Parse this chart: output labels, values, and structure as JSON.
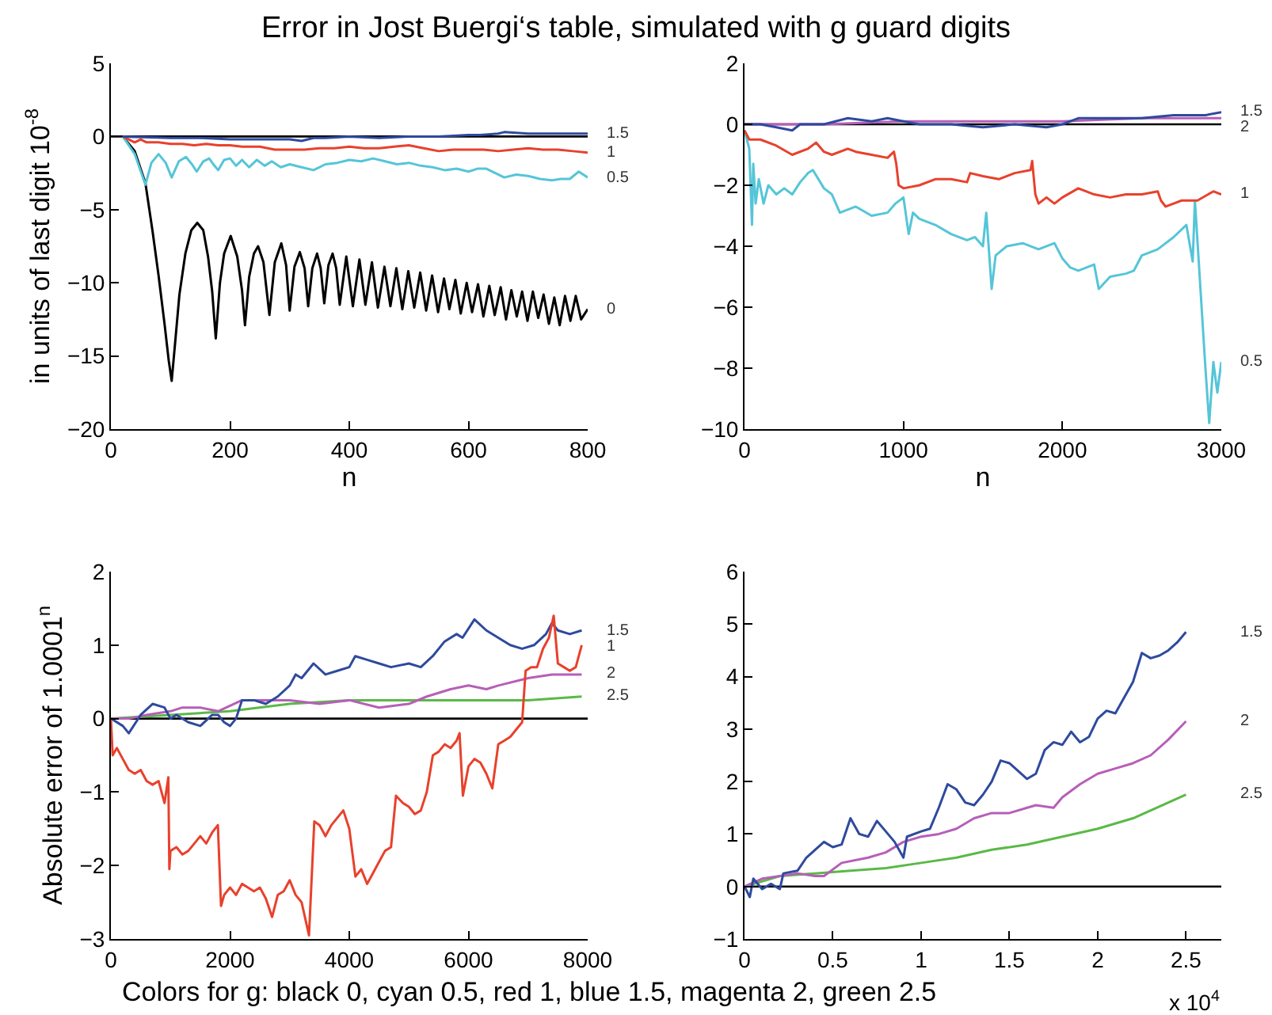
{
  "chart_data": [
    {
      "type": "line",
      "title": "Error in Jost Buergi‘s table, simulated with g guard digits",
      "xlabel": "n",
      "ylabel": "in units of last digit 10$^{-8}$",
      "xlim": [
        0,
        800
      ],
      "ylim": [
        -20,
        5
      ],
      "xticks": [
        0,
        200,
        400,
        600,
        800
      ],
      "yticks": [
        -20,
        -15,
        -10,
        -5,
        0,
        5
      ],
      "grid": false,
      "legend": false,
      "ref_lines": [
        {
          "axis": "y",
          "value": 0,
          "color": "#000000"
        }
      ],
      "series": [
        {
          "name": "0",
          "color": "#000000",
          "x": [
            20,
            40,
            58,
            70,
            80,
            90,
            97,
            102,
            108,
            115,
            125,
            135,
            145,
            155,
            163,
            170,
            176,
            183,
            190,
            201,
            212,
            220,
            225,
            232,
            240,
            247,
            256,
            266,
            275,
            286,
            294,
            300,
            308,
            317,
            325,
            331,
            338,
            346,
            352,
            358,
            365,
            372,
            378,
            384,
            395,
            406,
            417,
            427,
            438,
            448,
            459,
            469,
            479,
            489,
            499,
            509,
            519,
            529,
            539,
            549,
            559,
            568,
            578,
            587,
            597,
            606,
            616,
            625,
            635,
            644,
            654,
            663,
            672,
            681,
            690,
            699,
            708,
            717,
            726,
            735,
            744,
            753,
            762,
            771,
            780,
            789,
            800
          ],
          "values": [
            0,
            -1.0,
            -3.2,
            -6.5,
            -9.5,
            -12.8,
            -15.3,
            -16.7,
            -14.0,
            -10.8,
            -8.0,
            -6.4,
            -5.9,
            -6.4,
            -8.2,
            -10.6,
            -13.8,
            -10.0,
            -8.0,
            -6.8,
            -8.2,
            -10.5,
            -12.9,
            -9.6,
            -8.0,
            -7.5,
            -8.6,
            -12.2,
            -8.6,
            -7.3,
            -8.8,
            -11.9,
            -8.9,
            -7.9,
            -9.0,
            -11.6,
            -9.0,
            -8.0,
            -9.0,
            -11.4,
            -8.8,
            -8.0,
            -9.0,
            -11.5,
            -8.2,
            -11.6,
            -8.4,
            -11.5,
            -8.6,
            -11.7,
            -8.9,
            -11.6,
            -9.0,
            -11.8,
            -9.2,
            -11.7,
            -9.3,
            -11.9,
            -9.5,
            -12.0,
            -9.7,
            -11.8,
            -9.8,
            -12.1,
            -10.0,
            -12.0,
            -10.1,
            -12.3,
            -10.2,
            -12.2,
            -10.3,
            -12.5,
            -10.5,
            -12.3,
            -10.6,
            -12.6,
            -10.6,
            -12.4,
            -10.8,
            -12.8,
            -11.0,
            -12.9,
            -10.9,
            -12.6,
            -10.9,
            -12.5,
            -11.8
          ]
        },
        {
          "name": "0.5",
          "color": "#55c5d8",
          "x": [
            20,
            40,
            58,
            68,
            80,
            92,
            102,
            114,
            126,
            136,
            144,
            155,
            165,
            172,
            180,
            190,
            200,
            210,
            220,
            232,
            245,
            258,
            270,
            285,
            300,
            320,
            340,
            360,
            380,
            400,
            420,
            440,
            460,
            480,
            500,
            520,
            540,
            560,
            580,
            600,
            615,
            630,
            645,
            660,
            680,
            700,
            720,
            740,
            755,
            770,
            785,
            800
          ],
          "values": [
            0,
            -1.2,
            -3.3,
            -1.8,
            -1.2,
            -1.8,
            -2.8,
            -1.7,
            -1.4,
            -1.9,
            -2.4,
            -1.7,
            -1.5,
            -1.9,
            -2.3,
            -1.6,
            -1.5,
            -2.0,
            -1.6,
            -2.1,
            -1.6,
            -2.0,
            -1.7,
            -2.1,
            -1.9,
            -2.1,
            -2.3,
            -1.9,
            -1.8,
            -1.6,
            -1.7,
            -1.5,
            -1.7,
            -1.9,
            -1.8,
            -2.0,
            -2.1,
            -2.3,
            -2.2,
            -2.4,
            -2.2,
            -2.2,
            -2.5,
            -2.8,
            -2.6,
            -2.7,
            -2.9,
            -3.0,
            -2.9,
            -2.9,
            -2.4,
            -2.8
          ]
        },
        {
          "name": "1",
          "color": "#e8412c",
          "x": [
            20,
            30,
            40,
            50,
            60,
            80,
            100,
            120,
            140,
            160,
            180,
            200,
            220,
            250,
            275,
            300,
            325,
            350,
            375,
            400,
            425,
            450,
            475,
            500,
            525,
            550,
            575,
            600,
            625,
            650,
            675,
            700,
            725,
            750,
            775,
            800
          ],
          "values": [
            0,
            -0.2,
            -0.4,
            -0.2,
            -0.4,
            -0.4,
            -0.5,
            -0.5,
            -0.6,
            -0.5,
            -0.6,
            -0.6,
            -0.7,
            -0.7,
            -0.9,
            -0.9,
            -0.9,
            -0.8,
            -0.8,
            -0.7,
            -0.8,
            -0.8,
            -0.7,
            -0.6,
            -0.8,
            -1.0,
            -0.9,
            -0.9,
            -0.9,
            -1.0,
            -0.9,
            -0.8,
            -0.9,
            -0.9,
            -1.0,
            -1.1
          ]
        },
        {
          "name": "1.5",
          "color": "#2e4a9e",
          "x": [
            20,
            100,
            150,
            200,
            250,
            300,
            320,
            340,
            360,
            400,
            450,
            500,
            550,
            600,
            620,
            650,
            660,
            700,
            750,
            800
          ],
          "values": [
            0,
            -0.1,
            -0.1,
            -0.2,
            -0.2,
            -0.2,
            -0.3,
            -0.1,
            -0.1,
            0,
            -0.1,
            0,
            0,
            0.1,
            0.1,
            0.2,
            0.3,
            0.2,
            0.2,
            0.2
          ]
        }
      ]
    },
    {
      "type": "line",
      "xlabel": "n",
      "xlim": [
        0,
        3000
      ],
      "ylim": [
        -10,
        2
      ],
      "xticks": [
        0,
        1000,
        2000,
        3000
      ],
      "yticks": [
        -10,
        -8,
        -6,
        -4,
        -2,
        0,
        2
      ],
      "grid": false,
      "legend": false,
      "ref_lines": [
        {
          "axis": "y",
          "value": 0,
          "color": "#000000"
        }
      ],
      "series": [
        {
          "name": "0.5",
          "color": "#55c5d8",
          "x": [
            0,
            30,
            47,
            55,
            70,
            90,
            120,
            150,
            200,
            250,
            300,
            350,
            400,
            430,
            500,
            550,
            600,
            700,
            800,
            900,
            950,
            1000,
            1033,
            1060,
            1100,
            1200,
            1300,
            1400,
            1450,
            1500,
            1521,
            1555,
            1580,
            1650,
            1750,
            1850,
            1950,
            2000,
            2050,
            2100,
            2200,
            2229,
            2300,
            2400,
            2450,
            2500,
            2600,
            2700,
            2780,
            2820,
            2834,
            2900,
            2924,
            2950,
            2975,
            3000
          ],
          "values": [
            -0.2,
            -0.8,
            -3.3,
            -1.3,
            -2.6,
            -1.8,
            -2.6,
            -2.0,
            -2.3,
            -2.1,
            -2.3,
            -1.9,
            -1.6,
            -1.5,
            -2.1,
            -2.3,
            -2.9,
            -2.7,
            -3.0,
            -2.9,
            -2.6,
            -2.4,
            -3.6,
            -2.9,
            -3.1,
            -3.3,
            -3.6,
            -3.8,
            -3.7,
            -4.0,
            -2.9,
            -5.4,
            -4.3,
            -4.0,
            -3.9,
            -4.1,
            -3.9,
            -4.4,
            -4.7,
            -4.8,
            -4.6,
            -5.4,
            -5.0,
            -4.9,
            -4.8,
            -4.3,
            -4.1,
            -3.7,
            -3.3,
            -4.5,
            -2.5,
            -8.0,
            -9.8,
            -7.8,
            -8.8,
            -7.8
          ]
        },
        {
          "name": "1",
          "color": "#e8412c",
          "x": [
            0,
            30,
            100,
            200,
            300,
            400,
            450,
            500,
            550,
            650,
            700,
            800,
            900,
            940,
            955,
            970,
            1000,
            1100,
            1200,
            1300,
            1400,
            1420,
            1500,
            1600,
            1700,
            1800,
            1810,
            1830,
            1850,
            1900,
            1950,
            2000,
            2100,
            2200,
            2300,
            2400,
            2500,
            2600,
            2620,
            2650,
            2750,
            2850,
            2950,
            3000
          ],
          "values": [
            -0.2,
            -0.5,
            -0.5,
            -0.7,
            -1.0,
            -0.8,
            -0.6,
            -0.9,
            -1.0,
            -0.8,
            -0.9,
            -1.0,
            -1.1,
            -0.9,
            -1.3,
            -2.0,
            -2.1,
            -2.0,
            -1.8,
            -1.8,
            -1.9,
            -1.6,
            -1.7,
            -1.8,
            -1.6,
            -1.5,
            -1.2,
            -2.3,
            -2.6,
            -2.4,
            -2.6,
            -2.4,
            -2.1,
            -2.3,
            -2.4,
            -2.3,
            -2.3,
            -2.2,
            -2.5,
            -2.7,
            -2.5,
            -2.5,
            -2.2,
            -2.3
          ]
        },
        {
          "name": "2",
          "color": "#b65fb8",
          "x": [
            0,
            500,
            1000,
            1500,
            2000,
            2500,
            3000
          ],
          "values": [
            0,
            0,
            0.1,
            0.1,
            0.1,
            0.2,
            0.2
          ]
        },
        {
          "name": "1.5",
          "color": "#2e4a9e",
          "x": [
            0,
            100,
            200,
            300,
            350,
            500,
            650,
            800,
            900,
            1000,
            1100,
            1300,
            1500,
            1700,
            1900,
            2000,
            2100,
            2300,
            2500,
            2700,
            2800,
            2900,
            3000
          ],
          "values": [
            0,
            0,
            -0.1,
            -0.2,
            0,
            0,
            0.2,
            0.1,
            0.2,
            0.1,
            0,
            0,
            -0.1,
            0,
            -0.1,
            0,
            0.2,
            0.2,
            0.2,
            0.3,
            0.3,
            0.3,
            0.4
          ]
        }
      ]
    },
    {
      "type": "line",
      "ylabel": "Absolute error of 1.0001$^{n}$",
      "annotations": [
        "Colors for g: black 0, cyan 0.5, red 1, blue 1.5, magenta 2, green 2.5"
      ],
      "xlim": [
        0,
        8000
      ],
      "ylim": [
        -3,
        2
      ],
      "xticks": [
        0,
        2000,
        4000,
        6000,
        8000
      ],
      "yticks": [
        -3,
        -2,
        -1,
        0,
        1,
        2
      ],
      "grid": false,
      "legend": false,
      "ref_lines": [
        {
          "axis": "y",
          "value": 0,
          "color": "#000000"
        }
      ],
      "series": [
        {
          "name": "2.5",
          "color": "#5ab947",
          "x": [
            0,
            1000,
            2000,
            3000,
            4000,
            5000,
            6000,
            7000,
            7900
          ],
          "values": [
            0,
            0.05,
            0.1,
            0.2,
            0.25,
            0.25,
            0.25,
            0.25,
            0.3
          ]
        },
        {
          "name": "2",
          "color": "#b65fb8",
          "x": [
            0,
            300,
            600,
            1000,
            1200,
            1500,
            1800,
            2200,
            2500,
            3000,
            3500,
            4000,
            4500,
            5000,
            5300,
            5700,
            6000,
            6300,
            6500,
            7000,
            7400,
            7900
          ],
          "values": [
            0,
            0,
            0.05,
            0.1,
            0.15,
            0.15,
            0.1,
            0.25,
            0.25,
            0.25,
            0.2,
            0.25,
            0.15,
            0.2,
            0.3,
            0.4,
            0.45,
            0.4,
            0.45,
            0.55,
            0.6,
            0.6
          ]
        },
        {
          "name": "1.5",
          "color": "#2e4a9e",
          "x": [
            0,
            200,
            300,
            500,
            700,
            900,
            1000,
            1100,
            1300,
            1500,
            1700,
            1800,
            1900,
            2000,
            2100,
            2200,
            2400,
            2600,
            2800,
            3000,
            3100,
            3200,
            3400,
            3600,
            3800,
            4000,
            4100,
            4300,
            4500,
            4700,
            5000,
            5200,
            5400,
            5600,
            5800,
            5900,
            6100,
            6300,
            6500,
            6700,
            6900,
            7100,
            7300,
            7400,
            7500,
            7700,
            7900
          ],
          "values": [
            0,
            -0.1,
            -0.2,
            0.05,
            0.2,
            0.15,
            0,
            0.05,
            -0.05,
            -0.1,
            0.05,
            0.05,
            -0.05,
            -0.1,
            0,
            0.25,
            0.25,
            0.2,
            0.3,
            0.45,
            0.6,
            0.55,
            0.75,
            0.6,
            0.65,
            0.7,
            0.85,
            0.8,
            0.75,
            0.7,
            0.75,
            0.7,
            0.85,
            1.05,
            1.15,
            1.1,
            1.35,
            1.2,
            1.1,
            1.0,
            0.95,
            1.0,
            1.15,
            1.3,
            1.2,
            1.15,
            1.2
          ]
        },
        {
          "name": "1",
          "color": "#e8412c",
          "x": [
            0,
            30,
            100,
            200,
            300,
            400,
            500,
            600,
            700,
            800,
            900,
            964,
            981,
            1000,
            1100,
            1200,
            1300,
            1400,
            1500,
            1600,
            1700,
            1795,
            1848,
            1900,
            2000,
            2100,
            2200,
            2300,
            2400,
            2500,
            2600,
            2705,
            2800,
            2900,
            3000,
            3100,
            3200,
            3324,
            3413,
            3500,
            3600,
            3700,
            3800,
            3900,
            4000,
            4103,
            4200,
            4300,
            4400,
            4500,
            4600,
            4700,
            4783,
            4900,
            5000,
            5100,
            5200,
            5300,
            5402,
            5500,
            5600,
            5700,
            5800,
            5850,
            5906,
            6000,
            6100,
            6200,
            6300,
            6400,
            6500,
            6600,
            6700,
            6800,
            6900,
            6958,
            7050,
            7150,
            7250,
            7350,
            7430,
            7500,
            7600,
            7700,
            7800,
            7900
          ],
          "values": [
            0,
            -0.5,
            -0.4,
            -0.55,
            -0.7,
            -0.75,
            -0.7,
            -0.85,
            -0.9,
            -0.85,
            -1.15,
            -0.8,
            -2.05,
            -1.8,
            -1.75,
            -1.85,
            -1.8,
            -1.7,
            -1.6,
            -1.7,
            -1.55,
            -1.45,
            -2.55,
            -2.4,
            -2.3,
            -2.4,
            -2.25,
            -2.3,
            -2.35,
            -2.3,
            -2.45,
            -2.7,
            -2.4,
            -2.35,
            -2.2,
            -2.4,
            -2.5,
            -2.95,
            -1.4,
            -1.45,
            -1.6,
            -1.45,
            -1.35,
            -1.25,
            -1.5,
            -2.15,
            -2.05,
            -2.25,
            -2.1,
            -1.95,
            -1.8,
            -1.75,
            -1.05,
            -1.15,
            -1.2,
            -1.3,
            -1.25,
            -1.0,
            -0.5,
            -0.45,
            -0.35,
            -0.4,
            -0.3,
            -0.2,
            -1.05,
            -0.65,
            -0.55,
            -0.6,
            -0.75,
            -0.95,
            -0.35,
            -0.3,
            -0.25,
            -0.15,
            -0.05,
            0.65,
            0.7,
            0.7,
            0.95,
            1.1,
            1.4,
            0.75,
            0.7,
            0.65,
            0.7,
            1.0
          ]
        }
      ]
    },
    {
      "type": "line",
      "annotations": [
        "x 10$^{4}$"
      ],
      "xlim": [
        0,
        2.7
      ],
      "ylim": [
        -1,
        6
      ],
      "xticks": [
        0,
        0.5,
        1,
        1.5,
        2,
        2.5
      ],
      "yticks": [
        -1,
        0,
        1,
        2,
        3,
        4,
        5,
        6
      ],
      "grid": false,
      "legend": false,
      "ref_lines": [
        {
          "axis": "y",
          "value": 0,
          "color": "#000000"
        }
      ],
      "series": [
        {
          "name": "2.5",
          "color": "#5ab947",
          "x": [
            0,
            0.2,
            0.4,
            0.6,
            0.8,
            1.0,
            1.2,
            1.4,
            1.6,
            1.8,
            2.0,
            2.2,
            2.4,
            2.5
          ],
          "values": [
            0,
            0.2,
            0.25,
            0.3,
            0.35,
            0.45,
            0.55,
            0.7,
            0.8,
            0.95,
            1.1,
            1.3,
            1.6,
            1.75
          ]
        },
        {
          "name": "2",
          "color": "#b65fb8",
          "x": [
            0,
            0.1,
            0.2,
            0.3,
            0.4,
            0.45,
            0.55,
            0.7,
            0.8,
            0.9,
            1.0,
            1.1,
            1.2,
            1.3,
            1.4,
            1.5,
            1.6,
            1.65,
            1.75,
            1.8,
            1.9,
            2.0,
            2.1,
            2.2,
            2.3,
            2.4,
            2.5
          ],
          "values": [
            0,
            0.15,
            0.2,
            0.25,
            0.2,
            0.2,
            0.45,
            0.55,
            0.65,
            0.85,
            0.95,
            1.0,
            1.1,
            1.3,
            1.4,
            1.4,
            1.5,
            1.55,
            1.5,
            1.7,
            1.95,
            2.15,
            2.25,
            2.35,
            2.5,
            2.8,
            3.15
          ]
        },
        {
          "name": "1.5",
          "color": "#2e4a9e",
          "x": [
            0,
            0.03,
            0.05,
            0.1,
            0.15,
            0.2,
            0.22,
            0.3,
            0.35,
            0.4,
            0.45,
            0.5,
            0.55,
            0.6,
            0.65,
            0.7,
            0.75,
            0.8,
            0.85,
            0.9,
            0.92,
            1.0,
            1.05,
            1.1,
            1.15,
            1.2,
            1.25,
            1.3,
            1.35,
            1.4,
            1.45,
            1.5,
            1.55,
            1.6,
            1.65,
            1.7,
            1.75,
            1.8,
            1.85,
            1.9,
            1.95,
            2.0,
            2.05,
            2.1,
            2.15,
            2.2,
            2.25,
            2.3,
            2.35,
            2.4,
            2.45,
            2.5
          ],
          "values": [
            0,
            -0.2,
            0.15,
            -0.05,
            0.05,
            -0.05,
            0.25,
            0.3,
            0.55,
            0.7,
            0.85,
            0.75,
            0.8,
            1.3,
            1.0,
            0.95,
            1.25,
            1.05,
            0.85,
            0.55,
            0.95,
            1.05,
            1.1,
            1.5,
            1.95,
            1.85,
            1.6,
            1.55,
            1.75,
            2.0,
            2.4,
            2.35,
            2.2,
            2.05,
            2.15,
            2.6,
            2.75,
            2.7,
            2.95,
            2.75,
            2.85,
            3.2,
            3.35,
            3.3,
            3.6,
            3.9,
            4.45,
            4.35,
            4.4,
            4.5,
            4.65,
            4.85
          ]
        }
      ]
    }
  ]
}
